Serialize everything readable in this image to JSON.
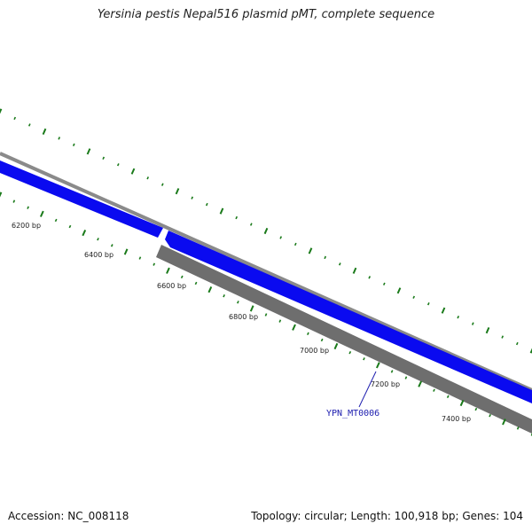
{
  "title": "Yersinia pestis Nepal516 plasmid pMT, complete sequence",
  "footer": {
    "accession": "Accession: NC_008118",
    "summary": "Topology: circular; Length: 100,918 bp; Genes: 104"
  },
  "ruler_labels": [
    "6200 bp",
    "6400 bp",
    "6600 bp",
    "6800 bp",
    "7000 bp",
    "7200 bp",
    "7400 bp"
  ],
  "gene_label": "YPN_MT0006",
  "colors": {
    "forward_gene": "#0a0af0",
    "reverse_gene": "#6e6e6e",
    "backbone": "#8a8a8a",
    "tick": "#1a7a1a",
    "gene_label": "#2020b0"
  }
}
